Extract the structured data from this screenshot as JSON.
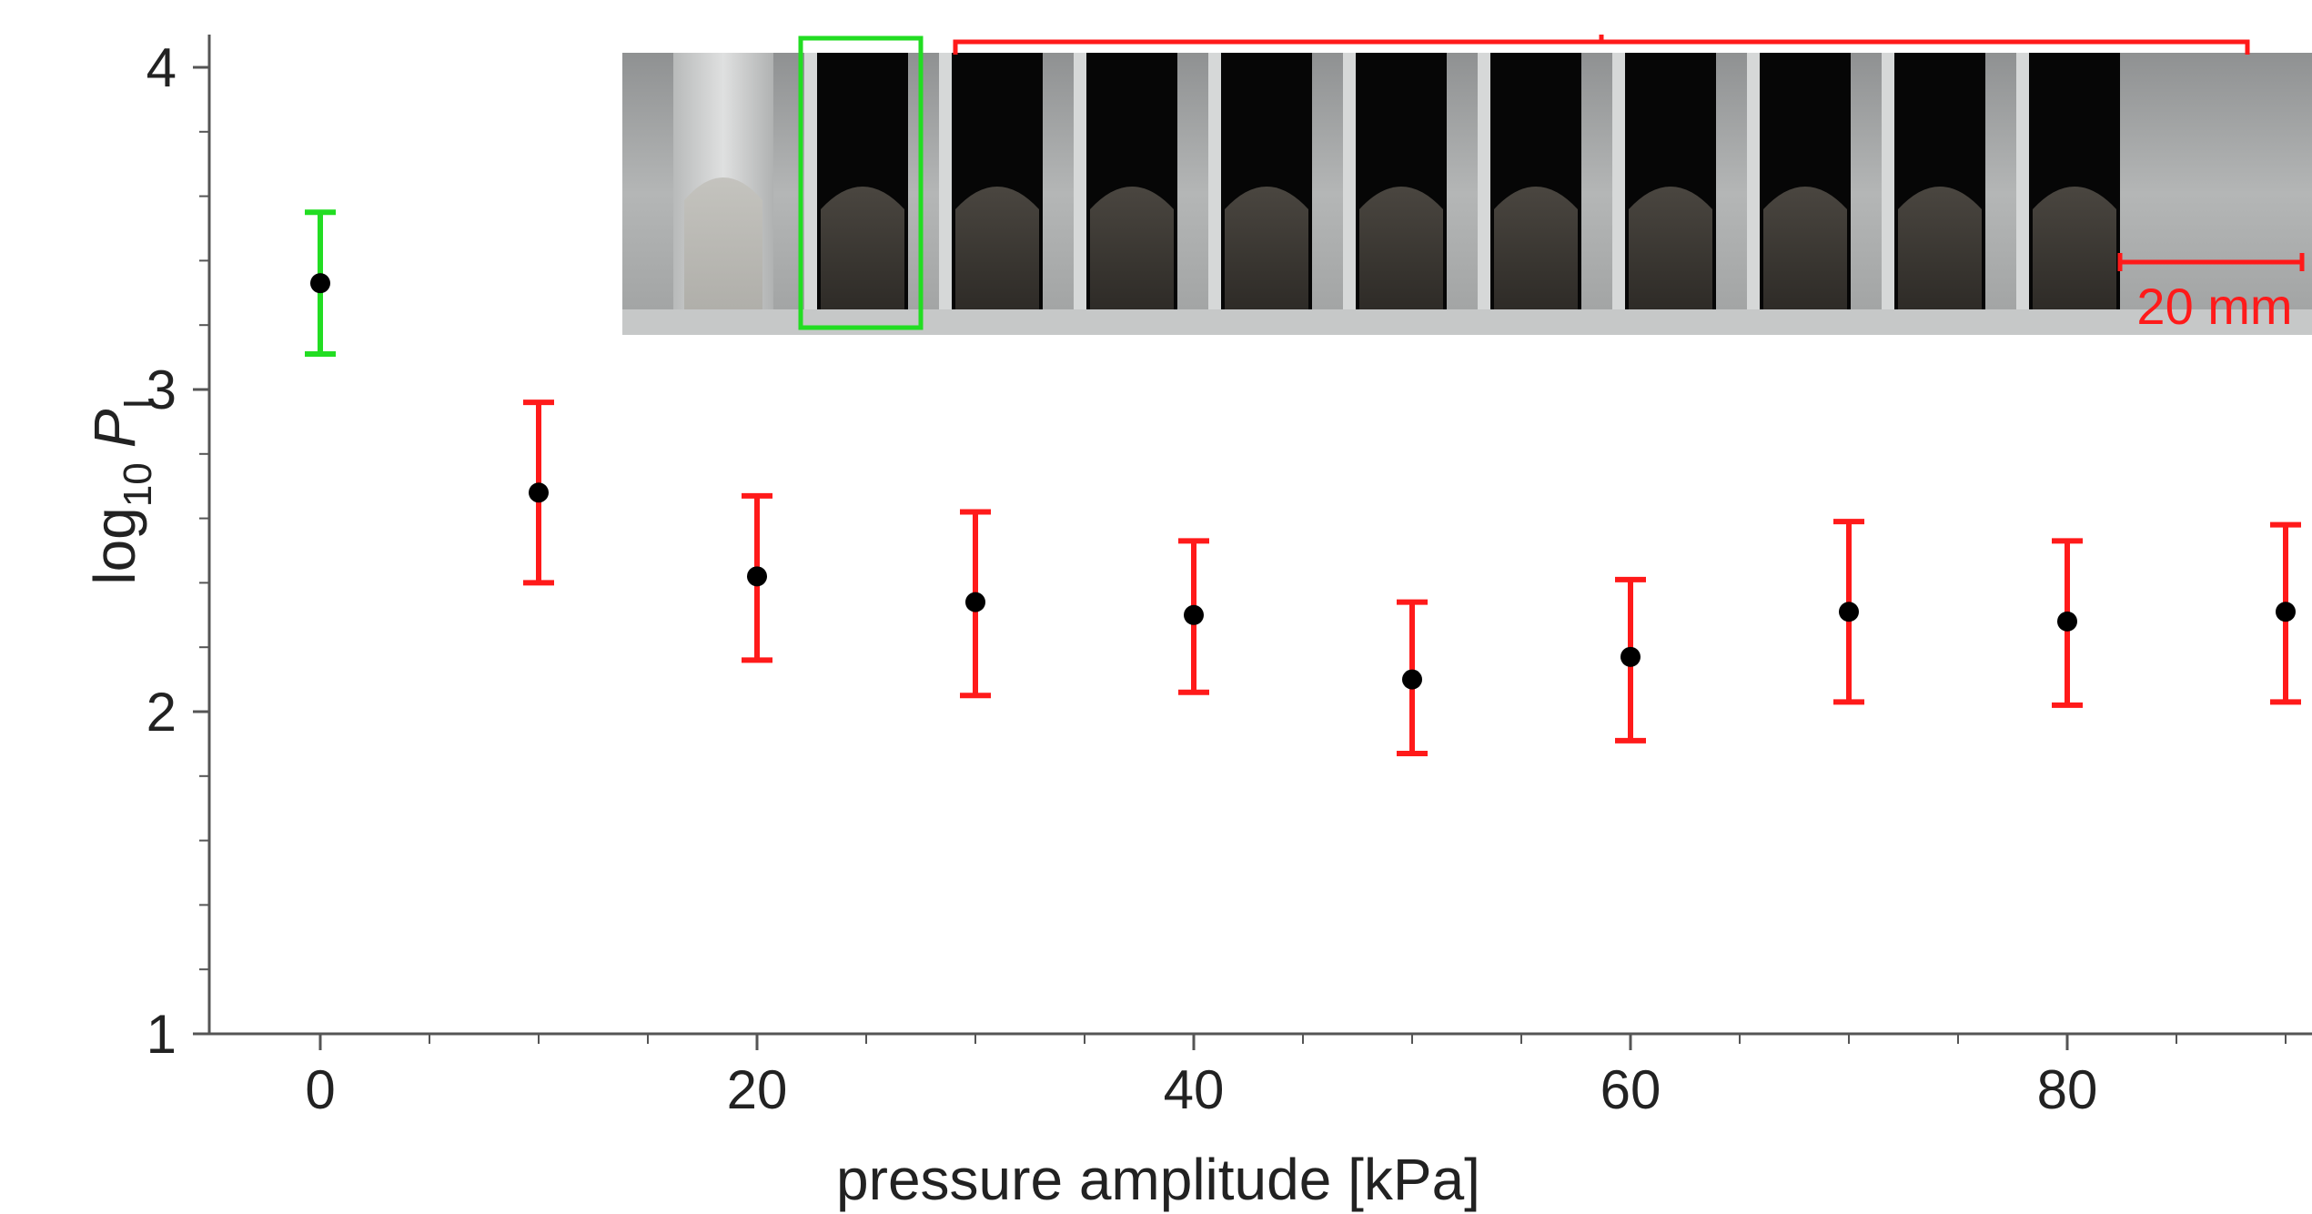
{
  "chart_data": {
    "type": "scatter",
    "title": "",
    "xlabel": "pressure amplitude [kPa]",
    "ylabel": {
      "prefix": "log",
      "subscript": "10",
      "symbol": "P",
      "symbol_subscript": "I"
    },
    "xlim": [
      -5,
      90.5
    ],
    "ylim": [
      1,
      4.1
    ],
    "x_ticks": [
      0,
      20,
      40,
      60,
      80
    ],
    "x_tick_labels": [
      "0",
      "20",
      "40",
      "60",
      "80"
    ],
    "x_minor_ticks": [
      5,
      10,
      15,
      25,
      30,
      35,
      45,
      50,
      55,
      65,
      70,
      75,
      85,
      90
    ],
    "y_ticks": [
      1,
      2,
      3,
      4
    ],
    "y_tick_labels": [
      "1",
      "2",
      "3",
      "4"
    ],
    "y_minor_ticks": [
      1.2,
      1.4,
      1.6,
      1.8,
      2.2,
      2.4,
      2.6,
      2.8,
      3.2,
      3.4,
      3.6,
      3.8
    ],
    "grid": false,
    "legend": "none",
    "colors": {
      "control": "#22dd22",
      "treated": "#ff1a1a",
      "point": "#000000",
      "axis": "#555555"
    },
    "points": [
      {
        "x": 0,
        "y": 3.33,
        "err_low": 3.11,
        "err_high": 3.55,
        "group": "control"
      },
      {
        "x": 10,
        "y": 2.68,
        "err_low": 2.4,
        "err_high": 2.96,
        "group": "treated"
      },
      {
        "x": 20,
        "y": 2.42,
        "err_low": 2.16,
        "err_high": 2.67,
        "group": "treated"
      },
      {
        "x": 30,
        "y": 2.34,
        "err_low": 2.05,
        "err_high": 2.62,
        "group": "treated"
      },
      {
        "x": 40,
        "y": 2.3,
        "err_low": 2.06,
        "err_high": 2.53,
        "group": "treated"
      },
      {
        "x": 50,
        "y": 2.1,
        "err_low": 1.87,
        "err_high": 2.34,
        "group": "treated"
      },
      {
        "x": 60,
        "y": 2.17,
        "err_low": 1.91,
        "err_high": 2.41,
        "group": "treated"
      },
      {
        "x": 70,
        "y": 2.31,
        "err_low": 2.03,
        "err_high": 2.59,
        "group": "treated"
      },
      {
        "x": 80,
        "y": 2.28,
        "err_low": 2.02,
        "err_high": 2.53,
        "group": "treated"
      },
      {
        "x": 90,
        "y": 2.31,
        "err_low": 2.03,
        "err_high": 2.58,
        "group": "treated"
      }
    ]
  },
  "inset": {
    "scale_bar_label": "20 mm",
    "chamber_count": 10
  }
}
